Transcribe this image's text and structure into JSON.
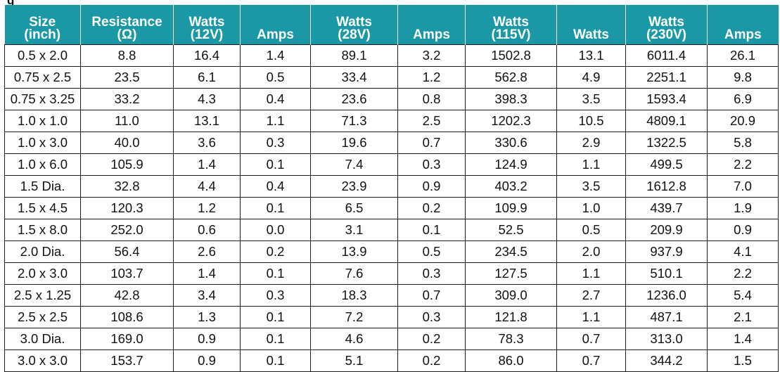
{
  "clipped_caption": "g",
  "columns": [
    {
      "line1": "Size",
      "line2": "(inch)"
    },
    {
      "line1": "Resistance",
      "line2": "(Ω)"
    },
    {
      "line1": "Watts",
      "line2": "(12V)"
    },
    {
      "line1": "Amps",
      "line2": ""
    },
    {
      "line1": "Watts",
      "line2": "(28V)"
    },
    {
      "line1": "Amps",
      "line2": ""
    },
    {
      "line1": "Watts",
      "line2": "(115V)"
    },
    {
      "line1": "Watts",
      "line2": ""
    },
    {
      "line1": "Watts",
      "line2": "(230V)"
    },
    {
      "line1": "Amps",
      "line2": ""
    }
  ],
  "rows": [
    [
      "0.5 x 2.0",
      "8.8",
      "16.4",
      "1.4",
      "89.1",
      "3.2",
      "1502.8",
      "13.1",
      "6011.4",
      "26.1"
    ],
    [
      "0.75 x 2.5",
      "23.5",
      "6.1",
      "0.5",
      "33.4",
      "1.2",
      "562.8",
      "4.9",
      "2251.1",
      "9.8"
    ],
    [
      "0.75 x 3.25",
      "33.2",
      "4.3",
      "0.4",
      "23.6",
      "0.8",
      "398.3",
      "3.5",
      "1593.4",
      "6.9"
    ],
    [
      "1.0 x 1.0",
      "11.0",
      "13.1",
      "1.1",
      "71.3",
      "2.5",
      "1202.3",
      "10.5",
      "4809.1",
      "20.9"
    ],
    [
      "1.0 x 3.0",
      "40.0",
      "3.6",
      "0.3",
      "19.6",
      "0.7",
      "330.6",
      "2.9",
      "1322.5",
      "5.8"
    ],
    [
      "1.0 x 6.0",
      "105.9",
      "1.4",
      "0.1",
      "7.4",
      "0.3",
      "124.9",
      "1.1",
      "499.5",
      "2.2"
    ],
    [
      "1.5 Dia.",
      "32.8",
      "4.4",
      "0.4",
      "23.9",
      "0.9",
      "403.2",
      "3.5",
      "1612.8",
      "7.0"
    ],
    [
      "1.5 x 4.5",
      "120.3",
      "1.2",
      "0.1",
      "6.5",
      "0.2",
      "109.9",
      "1.0",
      "439.7",
      "1.9"
    ],
    [
      "1.5 x 8.0",
      "252.0",
      "0.6",
      "0.0",
      "3.1",
      "0.1",
      "52.5",
      "0.5",
      "209.9",
      "0.9"
    ],
    [
      "2.0 Dia.",
      "56.4",
      "2.6",
      "0.2",
      "13.9",
      "0.5",
      "234.5",
      "2.0",
      "937.9",
      "4.1"
    ],
    [
      "2.0 x 3.0",
      "103.7",
      "1.4",
      "0.1",
      "7.6",
      "0.3",
      "127.5",
      "1.1",
      "510.1",
      "2.2"
    ],
    [
      "2.5 x 1.25",
      "42.8",
      "3.4",
      "0.3",
      "18.3",
      "0.7",
      "309.0",
      "2.7",
      "1236.0",
      "5.4"
    ],
    [
      "2.5 x 2.5",
      "108.6",
      "1.3",
      "0.1",
      "7.2",
      "0.3",
      "121.8",
      "1.1",
      "487.1",
      "2.1"
    ],
    [
      "3.0 Dia.",
      "169.0",
      "0.9",
      "0.1",
      "4.6",
      "0.2",
      "78.3",
      "0.7",
      "313.0",
      "1.4"
    ],
    [
      "3.0 x 3.0",
      "153.7",
      "0.9",
      "0.1",
      "5.1",
      "0.2",
      "86.0",
      "0.7",
      "344.2",
      "1.5"
    ]
  ]
}
